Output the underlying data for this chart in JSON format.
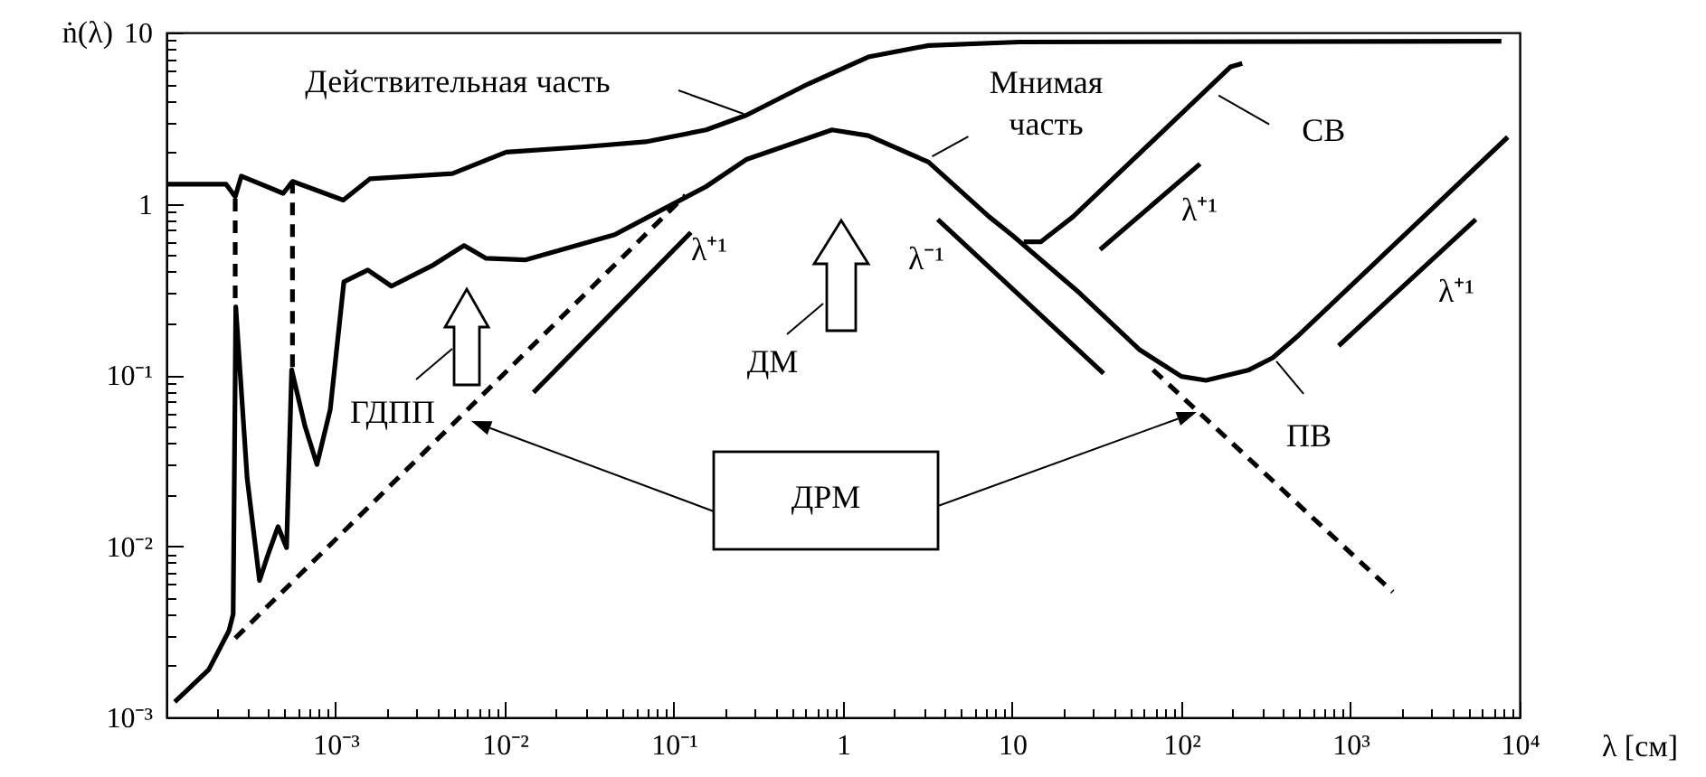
{
  "chart_data": {
    "type": "line",
    "xlabel": "λ [см]",
    "ylabel": "ṅ(λ)",
    "log": "xy",
    "grid": false,
    "marker": "none",
    "line_style": "solid",
    "xlim": [
      0.0001,
      10000
    ],
    "ylim": [
      0.001,
      10
    ],
    "xticks": [
      {
        "value": 0.0002,
        "label": null
      },
      {
        "value": 0.0003,
        "label": null
      },
      {
        "value": 0.0004,
        "label": null
      },
      {
        "value": 0.0005,
        "label": null
      },
      {
        "value": 0.0006,
        "label": null
      },
      {
        "value": 0.0007,
        "label": null
      },
      {
        "value": 0.0008,
        "label": null
      },
      {
        "value": 0.0009,
        "label": null
      },
      {
        "value": 0.001,
        "label": "10⁻³"
      },
      {
        "value": 0.002,
        "label": null
      },
      {
        "value": 0.003,
        "label": null
      },
      {
        "value": 0.004,
        "label": null
      },
      {
        "value": 0.005,
        "label": null
      },
      {
        "value": 0.006,
        "label": null
      },
      {
        "value": 0.007,
        "label": null
      },
      {
        "value": 0.008,
        "label": null
      },
      {
        "value": 0.009,
        "label": null
      },
      {
        "value": 0.01,
        "label": "10⁻²"
      },
      {
        "value": 0.02,
        "label": null
      },
      {
        "value": 0.03,
        "label": null
      },
      {
        "value": 0.04,
        "label": null
      },
      {
        "value": 0.05,
        "label": null
      },
      {
        "value": 0.06,
        "label": null
      },
      {
        "value": 0.07,
        "label": null
      },
      {
        "value": 0.08,
        "label": null
      },
      {
        "value": 0.09,
        "label": null
      },
      {
        "value": 0.1,
        "label": "10⁻¹"
      },
      {
        "value": 0.2,
        "label": null
      },
      {
        "value": 0.3,
        "label": null
      },
      {
        "value": 0.4,
        "label": null
      },
      {
        "value": 0.5,
        "label": null
      },
      {
        "value": 0.6,
        "label": null
      },
      {
        "value": 0.7,
        "label": null
      },
      {
        "value": 0.8,
        "label": null
      },
      {
        "value": 0.9,
        "label": null
      },
      1,
      {
        "value": 2,
        "label": null
      },
      {
        "value": 3,
        "label": null
      },
      {
        "value": 4,
        "label": null
      },
      {
        "value": 5,
        "label": null
      },
      {
        "value": 6,
        "label": null
      },
      {
        "value": 7,
        "label": null
      },
      {
        "value": 8,
        "label": null
      },
      {
        "value": 9,
        "label": null
      },
      10,
      {
        "value": 20,
        "label": null
      },
      {
        "value": 30,
        "label": null
      },
      {
        "value": 40,
        "label": null
      },
      {
        "value": 50,
        "label": null
      },
      {
        "value": 60,
        "label": null
      },
      {
        "value": 70,
        "label": null
      },
      {
        "value": 80,
        "label": null
      },
      {
        "value": 90,
        "label": null
      },
      {
        "value": 100,
        "label": "10²"
      },
      {
        "value": 200,
        "label": null
      },
      {
        "value": 300,
        "label": null
      },
      {
        "value": 400,
        "label": null
      },
      {
        "value": 500,
        "label": null
      },
      {
        "value": 600,
        "label": null
      },
      {
        "value": 700,
        "label": null
      },
      {
        "value": 800,
        "label": null
      },
      {
        "value": 900,
        "label": null
      },
      {
        "value": 1000,
        "label": "10³"
      },
      {
        "value": 2000,
        "label": null
      },
      {
        "value": 3000,
        "label": null
      },
      {
        "value": 4000,
        "label": null
      },
      {
        "value": 5000,
        "label": null
      },
      {
        "value": 6000,
        "label": null
      },
      {
        "value": 7000,
        "label": null
      },
      {
        "value": 8000,
        "label": null
      },
      {
        "value": 9000,
        "label": null
      },
      {
        "value": 10000,
        "label": "10⁴"
      }
    ],
    "yticks": [
      {
        "value": 0.001,
        "label": "10⁻³"
      },
      {
        "value": 0.002,
        "label": null
      },
      {
        "value": 0.003,
        "label": null
      },
      {
        "value": 0.004,
        "label": null
      },
      {
        "value": 0.005,
        "label": null
      },
      {
        "value": 0.006,
        "label": null
      },
      {
        "value": 0.007,
        "label": null
      },
      {
        "value": 0.008,
        "label": null
      },
      {
        "value": 0.009,
        "label": null
      },
      {
        "value": 0.01,
        "label": "10⁻²"
      },
      {
        "value": 0.02,
        "label": null
      },
      {
        "value": 0.03,
        "label": null
      },
      {
        "value": 0.04,
        "label": null
      },
      {
        "value": 0.05,
        "label": null
      },
      {
        "value": 0.06,
        "label": null
      },
      {
        "value": 0.07,
        "label": null
      },
      {
        "value": 0.08,
        "label": null
      },
      {
        "value": 0.09,
        "label": null
      },
      {
        "value": 0.1,
        "label": "10⁻¹"
      },
      {
        "value": 0.2,
        "label": null
      },
      {
        "value": 0.3,
        "label": null
      },
      {
        "value": 0.4,
        "label": null
      },
      {
        "value": 0.5,
        "label": null
      },
      {
        "value": 0.6,
        "label": null
      },
      {
        "value": 0.7,
        "label": null
      },
      {
        "value": 0.8,
        "label": null
      },
      {
        "value": 0.9,
        "label": null
      },
      1,
      {
        "value": 2,
        "label": null
      },
      {
        "value": 3,
        "label": null
      },
      {
        "value": 4,
        "label": null
      },
      {
        "value": 5,
        "label": null
      },
      {
        "value": 6,
        "label": null
      },
      {
        "value": 7,
        "label": null
      },
      {
        "value": 8,
        "label": null
      },
      {
        "value": 9,
        "label": null
      },
      10
    ],
    "series": [
      {
        "color": "#000000",
        "x": [
          0.0001,
          0.000225,
          0.000255,
          0.000277,
          0.00049,
          0.000556,
          0.00111,
          0.0016,
          0.0049,
          0.0102,
          0.0295,
          0.068,
          0.155,
          0.27,
          0.62,
          1.41,
          3.2,
          11,
          7800
        ],
        "values": [
          1.3,
          1.3,
          1.1,
          1.45,
          1.15,
          1.35,
          1.05,
          1.4,
          1.5,
          2,
          2.15,
          2.3,
          2.7,
          3.3,
          5,
          7.2,
          8.4,
          8.8,
          8.9
        ]
      },
      {
        "color": "#000000",
        "x": [
          0.000112,
          0.000178,
          0.000234,
          0.000248,
          0.000257,
          0.0003,
          0.000355,
          0.000398,
          0.000457,
          0.000513,
          0.00055,
          0.00066,
          0.000776,
          0.00093,
          0.00112,
          0.00155,
          0.00214,
          0.0038,
          0.00575,
          0.00776,
          0.0132,
          0.0447,
          0.155,
          0.27,
          0.86,
          1.41,
          3.2,
          7.3,
          10.1,
          25.1,
          56.8,
          100,
          140,
          251,
          347,
          479,
          8500
        ],
        "values": [
          0.00123,
          0.0019,
          0.0032,
          0.004,
          0.25,
          0.025,
          0.0063,
          0.0089,
          0.013,
          0.0098,
          0.107,
          0.05,
          0.03,
          0.063,
          0.35,
          0.41,
          0.33,
          0.44,
          0.57,
          0.48,
          0.47,
          0.66,
          1.26,
          1.82,
          2.7,
          2.5,
          1.75,
          0.84,
          0.65,
          0.3,
          0.14,
          0.098,
          0.093,
          0.107,
          0.126,
          0.166,
          2.45
        ]
      },
      {
        "color": "#000000",
        "x": [
          11.7,
          14.8,
          22.9,
          195,
          229
        ],
        "values": [
          0.6,
          0.6,
          0.84,
          6.3,
          6.6
        ]
      },
      {
        "color": "#000000",
        "line_style": "dashed",
        "x": [
          0.000255,
          0.117
        ],
        "values": [
          0.0029,
          1.12
        ]
      },
      {
        "color": "#000000",
        "line_style": "dashed",
        "x": [
          68,
          1780
        ],
        "values": [
          0.107,
          0.0054
        ]
      },
      {
        "color": "#000000",
        "line_style": "dashed",
        "x": [
          0.000255,
          0.000255
        ],
        "values": [
          1.07,
          0.25
        ]
      },
      {
        "color": "#000000",
        "line_style": "dashed",
        "x": [
          0.000556,
          0.000556
        ],
        "values": [
          1.36,
          0.107
        ]
      },
      {
        "color": "#000000",
        "x": [
          0.0148,
          0.126
        ],
        "values": [
          0.079,
          0.68
        ]
      },
      {
        "color": "#000000",
        "x": [
          3.63,
          34.7
        ],
        "values": [
          0.81,
          0.102
        ]
      },
      {
        "color": "#000000",
        "x": [
          33.1,
          129
        ],
        "values": [
          0.54,
          1.71
        ]
      },
      {
        "color": "#000000",
        "x": [
          851,
          5500
        ],
        "values": [
          0.148,
          0.81
        ]
      }
    ],
    "annotations": [
      "Действительная часть",
      {
        "text": "Мнимая\nчасть",
        "x": 3.2,
        "y": 1.8
      },
      {
        "text": "СВ",
        "x": 158,
        "y": 4.4
      },
      {
        "text": "ПВ",
        "x": 347,
        "y": 0.126
      },
      "ДМ",
      "ГДПП",
      "ДРМ",
      "λ⁺¹",
      "λ⁻¹",
      "λ⁺¹",
      "λ⁺¹"
    ]
  }
}
